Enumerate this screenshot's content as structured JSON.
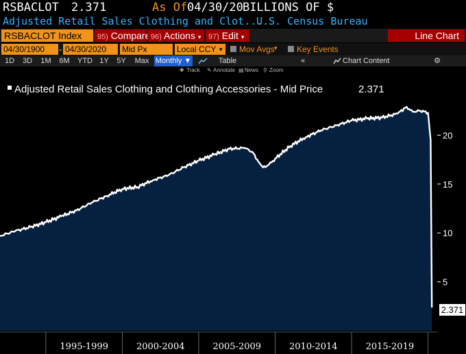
{
  "header": {
    "ticker": "RSBACLOT",
    "last_value": "2.371",
    "as_of_label": "As Of",
    "as_of_date": "04/30/20",
    "units": "BILLIONS OF $",
    "description": "Adjusted Retail Sales Clothing and Clot...",
    "source": "U.S. Census Bureau"
  },
  "command_bar": {
    "security": "RSBACLOT Index",
    "compare_num": "95)",
    "compare_label": "Compare",
    "actions_num": "96)",
    "actions_label": "Actions",
    "edit_num": "97)",
    "edit_label": "Edit",
    "view_title": "Line Chart"
  },
  "settings": {
    "start_date": "04/30/1900",
    "end_date": "04/30/2020",
    "field": "Mid Px",
    "currency": "Local CCY",
    "mov_avgs_label": "Mov Avgs",
    "key_events_label": "Key Events"
  },
  "periods": {
    "items": [
      "1D",
      "3D",
      "1M",
      "6M",
      "YTD",
      "1Y",
      "5Y",
      "Max"
    ],
    "frequency": "Monthly",
    "table_label": "Table",
    "chart_content_label": "Chart Content"
  },
  "toolbar": {
    "track": "Track",
    "annotate": "Annotate",
    "news": "News",
    "zoom": "Zoom"
  },
  "colors": {
    "accent_orange": "#f19318",
    "button_red": "#a50000",
    "header_blue": "#33b5ff",
    "chart_fill": "#06203f",
    "line": "#ffffff"
  },
  "chart_data": {
    "type": "area",
    "legend": "Adjusted Retail Sales Clothing and Clothing Accessories - Mid Price",
    "legend_value": "2.371",
    "last_value_label": "2.371",
    "ylim": [
      0,
      25
    ],
    "yticks": [
      5,
      10,
      15,
      20
    ],
    "xlim": [
      1992.0,
      2020.6
    ],
    "x_period_labels": [
      "1995-1999",
      "2000-2004",
      "2005-2009",
      "2010-2014",
      "2015-2019"
    ],
    "x_period_bounds": [
      1995,
      2000,
      2005,
      2010,
      2015,
      2020
    ],
    "grid": false,
    "series": [
      {
        "x": [
          1992.0,
          1993.0,
          1994.0,
          1995.0,
          1996.0,
          1997.0,
          1998.0,
          1999.0,
          2000.0,
          2001.0,
          2002.0,
          2003.0,
          2004.0,
          2005.0,
          2006.0,
          2007.0,
          2008.0,
          2008.5,
          2008.9,
          2009.2,
          2009.6,
          2010.0,
          2011.0,
          2012.0,
          2013.0,
          2014.0,
          2015.0,
          2016.0,
          2017.0,
          2018.0,
          2018.6,
          2019.0,
          2019.5,
          2020.0,
          2020.17,
          2020.25
        ],
        "y": [
          9.7,
          10.2,
          10.6,
          11.1,
          11.7,
          12.3,
          13.1,
          13.8,
          14.5,
          14.7,
          15.4,
          15.9,
          16.7,
          17.4,
          18.0,
          18.6,
          18.7,
          18.3,
          17.3,
          16.7,
          17.0,
          17.6,
          18.9,
          19.8,
          20.5,
          21.0,
          21.5,
          21.7,
          21.8,
          22.2,
          22.9,
          22.4,
          22.5,
          22.3,
          19.5,
          2.371
        ]
      }
    ]
  }
}
